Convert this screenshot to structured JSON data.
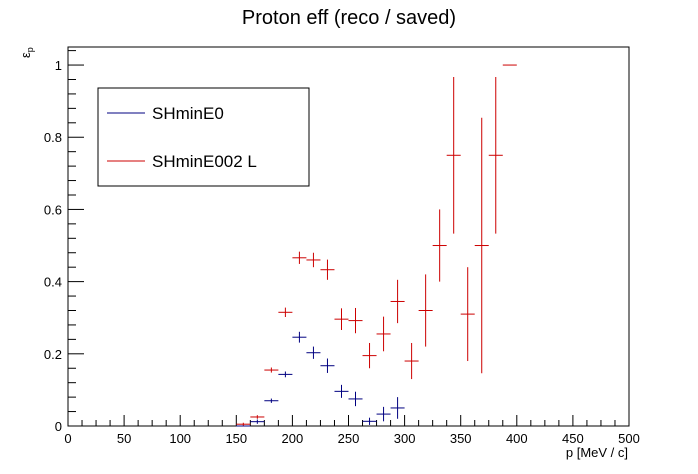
{
  "chart_data": {
    "type": "scatter",
    "title": "Proton eff (reco / saved)",
    "xlabel": "p [MeV / c]",
    "ylabel_main": "ε",
    "ylabel_sub": "p",
    "xlim": [
      0,
      500
    ],
    "ylim": [
      0,
      1.05
    ],
    "x_ticks": [
      0,
      50,
      100,
      150,
      200,
      250,
      300,
      350,
      400,
      450,
      500
    ],
    "y_ticks": [
      0,
      0.2,
      0.4,
      0.6,
      0.8,
      1
    ],
    "bin_width": 12.5,
    "grid": false,
    "legend_position": "top-left",
    "series": [
      {
        "name": "SHminE0",
        "color": "#000080",
        "points": [
          {
            "x": 156.25,
            "y": 0.0,
            "err": 0.0
          },
          {
            "x": 168.75,
            "y": 0.012,
            "err": 0.006
          },
          {
            "x": 181.25,
            "y": 0.07,
            "err": 0.006
          },
          {
            "x": 193.75,
            "y": 0.143,
            "err": 0.008
          },
          {
            "x": 206.25,
            "y": 0.246,
            "err": 0.015
          },
          {
            "x": 218.75,
            "y": 0.203,
            "err": 0.017
          },
          {
            "x": 231.25,
            "y": 0.167,
            "err": 0.02
          },
          {
            "x": 243.75,
            "y": 0.096,
            "err": 0.018
          },
          {
            "x": 256.25,
            "y": 0.075,
            "err": 0.02
          },
          {
            "x": 268.75,
            "y": 0.013,
            "err": 0.01
          },
          {
            "x": 281.25,
            "y": 0.033,
            "err": 0.02
          },
          {
            "x": 293.75,
            "y": 0.05,
            "err": 0.03
          }
        ]
      },
      {
        "name": "SHminE002 L",
        "color": "#cc0000",
        "points": [
          {
            "x": 156.25,
            "y": 0.005,
            "err": 0.004
          },
          {
            "x": 168.75,
            "y": 0.025,
            "err": 0.005
          },
          {
            "x": 181.25,
            "y": 0.155,
            "err": 0.007
          },
          {
            "x": 193.75,
            "y": 0.315,
            "err": 0.013
          },
          {
            "x": 206.25,
            "y": 0.466,
            "err": 0.017
          },
          {
            "x": 218.75,
            "y": 0.46,
            "err": 0.02
          },
          {
            "x": 231.25,
            "y": 0.433,
            "err": 0.028
          },
          {
            "x": 243.75,
            "y": 0.296,
            "err": 0.03
          },
          {
            "x": 256.25,
            "y": 0.292,
            "err": 0.035
          },
          {
            "x": 268.75,
            "y": 0.195,
            "err": 0.035
          },
          {
            "x": 281.25,
            "y": 0.255,
            "err": 0.048
          },
          {
            "x": 293.75,
            "y": 0.345,
            "err": 0.06
          },
          {
            "x": 306.25,
            "y": 0.18,
            "err": 0.05
          },
          {
            "x": 318.75,
            "y": 0.32,
            "err": 0.1
          },
          {
            "x": 331.25,
            "y": 0.5,
            "err": 0.1
          },
          {
            "x": 343.75,
            "y": 0.75,
            "err": 0.217
          },
          {
            "x": 356.25,
            "y": 0.31,
            "err": 0.13
          },
          {
            "x": 368.75,
            "y": 0.5,
            "err": 0.354
          },
          {
            "x": 381.25,
            "y": 0.75,
            "err": 0.217
          },
          {
            "x": 393.75,
            "y": 1.0,
            "err": 0.0
          }
        ]
      }
    ]
  }
}
